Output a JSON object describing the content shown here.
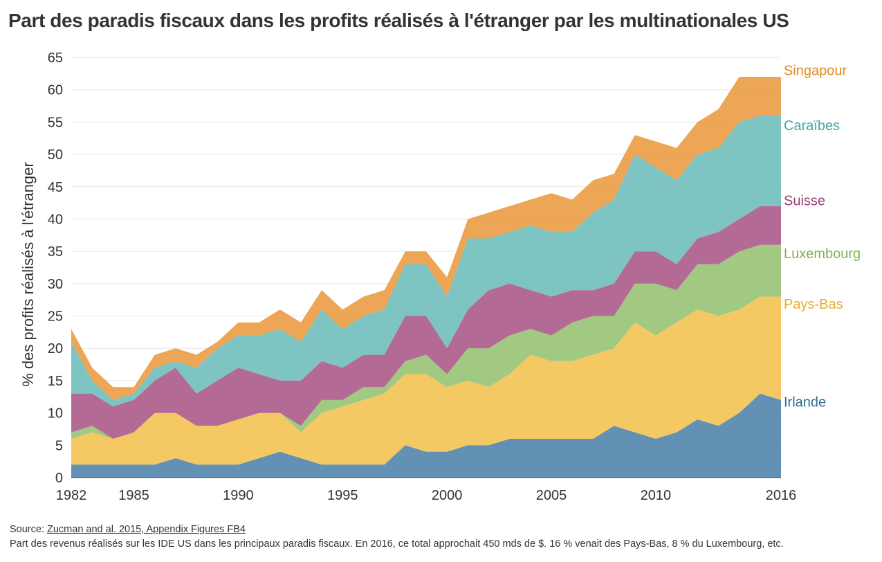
{
  "title": "Part des paradis fiscaux dans les profits réalisés à l'étranger par les multinationales US",
  "footer": {
    "source_prefix": "Source: ",
    "source_link": "Zucman and al. 2015, Appendix Figures FB4",
    "note": "Part des revenus réalisés sur les IDE US dans les principaux paradis fiscaux. En 2016, ce total approchait 450 mds de $. 16 % venait des Pays-Bas, 8 % du Luxembourg, etc."
  },
  "chart_data": {
    "type": "area",
    "stacked": true,
    "ylabel": "% des profits réalisés à l'étranger",
    "xlabel": "",
    "xlim": [
      1982,
      2016
    ],
    "ylim": [
      0,
      65
    ],
    "yticks": [
      0,
      5,
      10,
      15,
      20,
      25,
      30,
      35,
      40,
      45,
      50,
      55,
      60,
      65
    ],
    "xticks": [
      1982,
      1985,
      1990,
      1995,
      2000,
      2005,
      2010,
      2016
    ],
    "grid": true,
    "legend": "direct labels at right end",
    "x": [
      1982,
      1983,
      1984,
      1985,
      1986,
      1987,
      1988,
      1989,
      1990,
      1991,
      1992,
      1993,
      1994,
      1995,
      1996,
      1997,
      1998,
      1999,
      2000,
      2001,
      2002,
      2003,
      2004,
      2005,
      2006,
      2007,
      2008,
      2009,
      2010,
      2011,
      2012,
      2013,
      2014,
      2015,
      2016
    ],
    "series": [
      {
        "name": "Irlande",
        "color": "#4c82a8",
        "values": [
          2,
          2,
          2,
          2,
          2,
          3,
          2,
          2,
          2,
          3,
          4,
          3,
          2,
          2,
          2,
          2,
          5,
          4,
          4,
          5,
          5,
          6,
          6,
          6,
          6,
          6,
          8,
          7,
          6,
          7,
          9,
          8,
          10,
          13,
          12
        ]
      },
      {
        "name": "Pays-Bas",
        "color": "#f2c14e",
        "values": [
          4,
          5,
          4,
          5,
          8,
          7,
          6,
          6,
          7,
          7,
          6,
          4,
          8,
          9,
          10,
          11,
          11,
          12,
          10,
          10,
          9,
          10,
          13,
          12,
          12,
          13,
          12,
          17,
          16,
          17,
          17,
          17,
          16,
          15,
          16
        ]
      },
      {
        "name": "Luxembourg",
        "color": "#95c26f",
        "values": [
          1,
          1,
          0,
          0,
          0,
          0,
          0,
          0,
          0,
          0,
          0,
          1,
          2,
          1,
          2,
          1,
          2,
          3,
          2,
          5,
          6,
          6,
          4,
          4,
          6,
          6,
          5,
          6,
          8,
          5,
          7,
          8,
          9,
          8,
          8
        ]
      },
      {
        "name": "Suisse",
        "color": "#a95788",
        "values": [
          6,
          5,
          5,
          5,
          5,
          7,
          5,
          7,
          8,
          6,
          5,
          7,
          6,
          5,
          5,
          5,
          7,
          6,
          4,
          6,
          9,
          8,
          6,
          6,
          5,
          4,
          5,
          5,
          5,
          4,
          4,
          5,
          5,
          6,
          6
        ]
      },
      {
        "name": "Caraïbes",
        "color": "#6bbcba",
        "values": [
          8,
          2,
          1,
          1,
          2,
          1,
          4,
          5,
          5,
          6,
          8,
          6,
          8,
          6,
          6,
          7,
          8,
          8,
          8,
          11,
          8,
          8,
          10,
          10,
          9,
          12,
          13,
          15,
          13,
          13,
          13,
          13,
          15,
          14,
          14
        ]
      },
      {
        "name": "Singapour",
        "color": "#eb9a3f",
        "values": [
          2,
          2,
          2,
          1,
          2,
          2,
          2,
          1,
          2,
          2,
          3,
          3,
          3,
          3,
          3,
          3,
          2,
          2,
          3,
          3,
          4,
          4,
          4,
          6,
          5,
          5,
          4,
          3,
          4,
          5,
          5,
          6,
          7,
          6,
          6
        ]
      }
    ]
  }
}
